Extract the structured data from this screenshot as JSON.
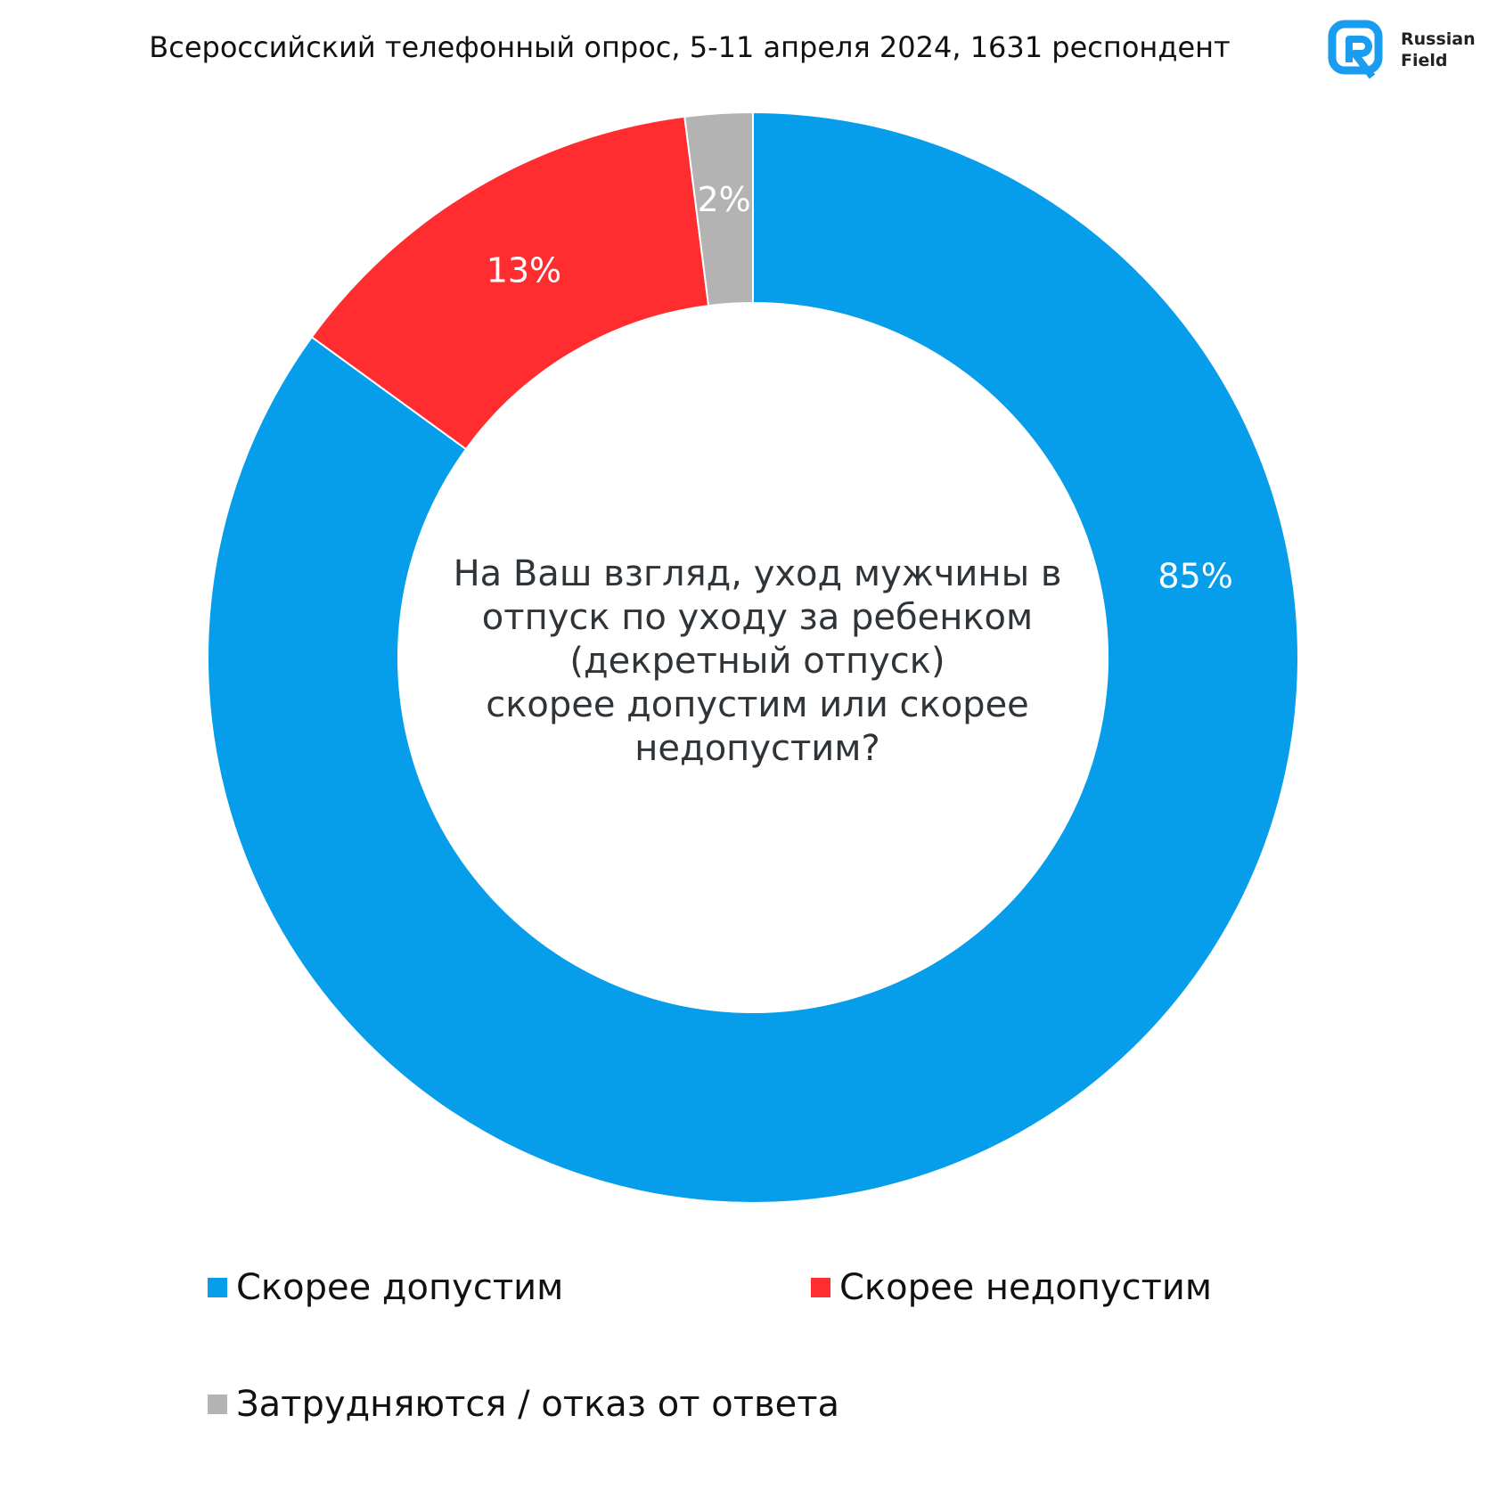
{
  "header": {
    "subtitle": "Всероссийский телефонный опрос, 5-11 апреля 2024, 1631 респондент",
    "logo": {
      "line1": "Russian",
      "line2": "Field",
      "icon": "russian-field-logo-icon",
      "color": "#1a9cf0"
    }
  },
  "question": {
    "lines": [
      "На Ваш взгляд, уход мужчины в",
      "отпуск по уходу за ребенком",
      "(декретный отпуск)",
      "скорее допустим или скорее",
      "недопустим?"
    ]
  },
  "chart_data": {
    "type": "pie",
    "variant": "donut",
    "title": "На Ваш взгляд, уход мужчины в отпуск по уходу за ребенком (декретный отпуск) скорее допустим или скорее недопустим?",
    "slices": [
      {
        "label": "Скорее допустим",
        "value": 85,
        "display": "85%",
        "color": "#069deb"
      },
      {
        "label": "Скорее недопустим",
        "value": 13,
        "display": "13%",
        "color": "#ff2d30"
      },
      {
        "label": "Затрудняются / отказ от ответа",
        "value": 2,
        "display": "2%",
        "color": "#b3b3b3"
      }
    ],
    "legend_position": "bottom"
  }
}
